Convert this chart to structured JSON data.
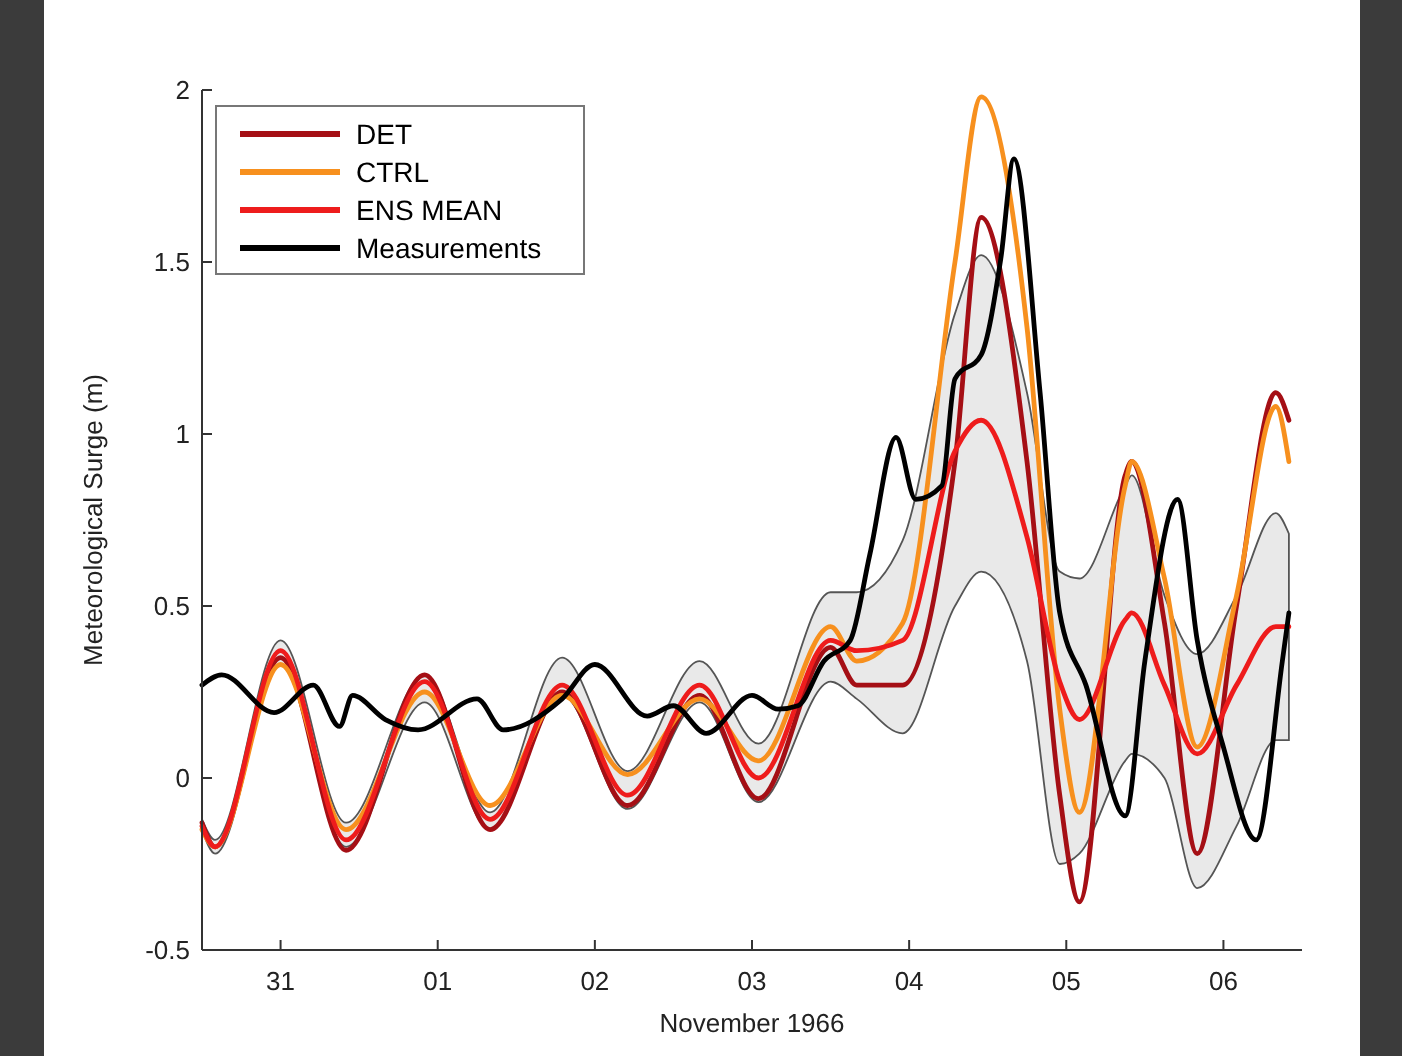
{
  "chart_data": {
    "type": "line",
    "xlabel": "November 1966",
    "ylabel": "Meteorological Surge (m)",
    "x": [
      "1966-10-30T12:00",
      "1966-10-30T14:00",
      "1966-10-31T00:00",
      "1966-10-31T10:00",
      "1966-10-31T22:00",
      "1966-11-01T08:00",
      "1966-11-01T19:00",
      "1966-11-02T05:00",
      "1966-11-02T16:00",
      "1966-11-03T01:00",
      "1966-11-03T12:00",
      "1966-11-03T16:00",
      "1966-11-03T23:00",
      "1966-11-04T07:00",
      "1966-11-04T11:00",
      "1966-11-04T18:00",
      "1966-11-04T23:00",
      "1966-11-05T02:00",
      "1966-11-05T09:00",
      "1966-11-05T10:00",
      "1966-11-05T15:00",
      "1966-11-05T20:00",
      "1966-11-06T02:00",
      "1966-11-06T08:00",
      "1966-11-06T10:00"
    ],
    "series": [
      {
        "name": "DET",
        "color": "#a50f15",
        "values": [
          -0.13,
          -0.2,
          0.35,
          -0.21,
          0.3,
          -0.15,
          0.25,
          -0.08,
          0.24,
          -0.06,
          0.38,
          0.27,
          0.27,
          0.92,
          1.63,
          0.92,
          -0.05,
          -0.36,
          0.88,
          0.92,
          0.45,
          -0.22,
          0.5,
          1.12,
          1.04
        ]
      },
      {
        "name": "CTRL",
        "color": "#f7901e",
        "values": [
          -0.15,
          -0.2,
          0.33,
          -0.15,
          0.25,
          -0.08,
          0.24,
          0.01,
          0.23,
          0.05,
          0.44,
          0.34,
          0.45,
          1.5,
          1.98,
          1.31,
          0.2,
          -0.1,
          0.85,
          0.92,
          0.58,
          0.09,
          0.53,
          1.08,
          0.92
        ]
      },
      {
        "name": "ENS MEAN",
        "color": "#ee1c1c",
        "values": [
          -0.14,
          -0.2,
          0.37,
          -0.18,
          0.28,
          -0.12,
          0.27,
          -0.05,
          0.27,
          0.0,
          0.4,
          0.37,
          0.4,
          0.95,
          1.04,
          0.7,
          0.28,
          0.17,
          0.46,
          0.48,
          0.27,
          0.07,
          0.27,
          0.44,
          0.44
        ],
        "lower": [
          -0.15,
          -0.22,
          0.33,
          -0.2,
          0.22,
          -0.15,
          0.24,
          -0.09,
          0.22,
          -0.07,
          0.28,
          0.23,
          0.13,
          0.5,
          0.6,
          0.34,
          -0.25,
          -0.22,
          0.05,
          0.07,
          0.0,
          -0.32,
          -0.14,
          0.11,
          0.11
        ],
        "upper": [
          -0.12,
          -0.18,
          0.4,
          -0.13,
          0.3,
          -0.1,
          0.35,
          0.02,
          0.34,
          0.1,
          0.54,
          0.54,
          0.69,
          1.35,
          1.52,
          1.12,
          0.6,
          0.58,
          0.85,
          0.88,
          0.53,
          0.36,
          0.53,
          0.77,
          0.71
        ]
      },
      {
        "name": "Measurements",
        "color": "#000000",
        "x": [
          "1966-10-30T12:00",
          "1966-10-30T15:00",
          "1966-10-30T23:00",
          "1966-10-31T05:00",
          "1966-10-31T09:00",
          "1966-10-31T11:00",
          "1966-10-31T16:00",
          "1966-10-31T21:00",
          "1966-11-01T06:00",
          "1966-11-01T10:00",
          "1966-11-01T19:00",
          "1966-11-02T00:00",
          "1966-11-02T08:00",
          "1966-11-02T12:00",
          "1966-11-02T17:00",
          "1966-11-03T00:00",
          "1966-11-03T04:00",
          "1966-11-03T07:00",
          "1966-11-03T11:00",
          "1966-11-03T15:00",
          "1966-11-03T18:00",
          "1966-11-03T22:00",
          "1966-11-04T01:00",
          "1966-11-04T05:00",
          "1966-11-04T07:00",
          "1966-11-04T11:00",
          "1966-11-04T14:00",
          "1966-11-04T16:00",
          "1966-11-04T20:00",
          "1966-11-04T23:00",
          "1966-11-05T03:00",
          "1966-11-05T09:00",
          "1966-11-05T12:00",
          "1966-11-05T17:00",
          "1966-11-05T20:00",
          "1966-11-06T00:00",
          "1966-11-06T05:00",
          "1966-11-06T09:00",
          "1966-11-06T10:00"
        ],
        "values": [
          0.27,
          0.3,
          0.19,
          0.27,
          0.15,
          0.24,
          0.17,
          0.14,
          0.23,
          0.14,
          0.23,
          0.33,
          0.18,
          0.21,
          0.13,
          0.24,
          0.2,
          0.21,
          0.34,
          0.4,
          0.65,
          0.99,
          0.81,
          0.85,
          1.16,
          1.23,
          1.51,
          1.8,
          1.12,
          0.48,
          0.27,
          -0.11,
          0.34,
          0.81,
          0.4,
          0.09,
          -0.18,
          0.34,
          0.48
        ]
      }
    ],
    "xlim": [
      "1966-10-30T12:00",
      "1966-11-06T12:00"
    ],
    "xticks": [
      {
        "value": "1966-10-31",
        "label": "31"
      },
      {
        "value": "1966-11-01",
        "label": "01"
      },
      {
        "value": "1966-11-02",
        "label": "02"
      },
      {
        "value": "1966-11-03",
        "label": "03"
      },
      {
        "value": "1966-11-04",
        "label": "04"
      },
      {
        "value": "1966-11-05",
        "label": "05"
      },
      {
        "value": "1966-11-06",
        "label": "06"
      }
    ],
    "ylim": [
      -0.5,
      2
    ],
    "yticks": [
      -0.5,
      0,
      0.5,
      1,
      1.5,
      2
    ],
    "legend": "top left"
  }
}
